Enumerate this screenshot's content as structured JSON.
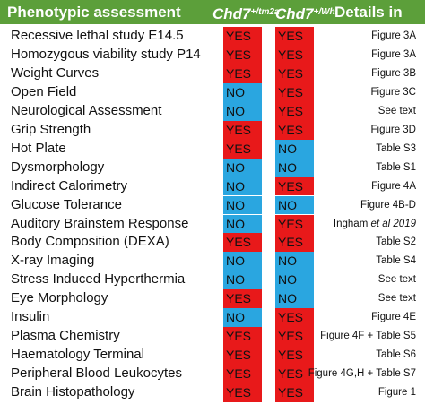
{
  "header": {
    "phenotypic_assessment": "Phenotypic assessment",
    "genotype1_base": "Chd7",
    "genotype1_sup": "+/tm2a",
    "genotype2_base": "Chd7",
    "genotype2_sup": "+/Whi",
    "details_in": "Details in"
  },
  "colors": {
    "header_green": "#5c9f3a",
    "yes_red": "#e8191a",
    "no_blue": "#2aa6e0"
  },
  "rows": [
    {
      "assay": "Recessive lethal study E14.5",
      "g1": "YES",
      "g2": "YES",
      "detail": "Figure 3A",
      "detail_italic": ""
    },
    {
      "assay": "Homozygous viability study P14",
      "g1": "YES",
      "g2": "YES",
      "detail": "Figure 3A",
      "detail_italic": ""
    },
    {
      "assay": "Weight Curves",
      "g1": "YES",
      "g2": "YES",
      "detail": "Figure  3B",
      "detail_italic": ""
    },
    {
      "assay": "Open Field",
      "g1": "NO",
      "g2": "YES",
      "detail": "Figure  3C",
      "detail_italic": ""
    },
    {
      "assay": "Neurological Assessment",
      "g1": "NO",
      "g2": "YES",
      "detail": "See text",
      "detail_italic": ""
    },
    {
      "assay": "Grip Strength",
      "g1": "YES",
      "g2": "YES",
      "detail": "Figure 3D",
      "detail_italic": ""
    },
    {
      "assay": "Hot Plate",
      "g1": "YES",
      "g2": "NO",
      "detail": "Table S3",
      "detail_italic": ""
    },
    {
      "assay": "Dysmorphology",
      "g1": "NO",
      "g2": "NO",
      "detail": "Table S1",
      "detail_italic": ""
    },
    {
      "assay": "Indirect Calorimetry",
      "g1": "NO",
      "g2": "YES",
      "detail": "Figure  4A",
      "detail_italic": ""
    },
    {
      "assay": "Glucose Tolerance",
      "g1": "NO",
      "g2": "NO",
      "detail": "Figure 4B-D",
      "detail_italic": ""
    },
    {
      "assay": "Auditory Brainstem Response",
      "g1": "NO",
      "g2": "YES",
      "detail": "Ingham ",
      "detail_italic": "et al 2019"
    },
    {
      "assay": "Body Composition (DEXA)",
      "g1": "YES",
      "g2": "YES",
      "detail": "Table S2",
      "detail_italic": ""
    },
    {
      "assay": "X-ray Imaging",
      "g1": "NO",
      "g2": "NO",
      "detail": "Table S4",
      "detail_italic": ""
    },
    {
      "assay": "Stress Induced Hyperthermia",
      "g1": "NO",
      "g2": "NO",
      "detail": "See text",
      "detail_italic": ""
    },
    {
      "assay": "Eye Morphology",
      "g1": "YES",
      "g2": "NO",
      "detail": "See text",
      "detail_italic": ""
    },
    {
      "assay": "Insulin",
      "g1": "NO",
      "g2": "YES",
      "detail": "Figure  4E",
      "detail_italic": ""
    },
    {
      "assay": "Plasma Chemistry",
      "g1": "YES",
      "g2": "YES",
      "detail": "Figure  4F + Table S5",
      "detail_italic": ""
    },
    {
      "assay": "Haematology Terminal",
      "g1": "YES",
      "g2": "YES",
      "detail": "Table S6",
      "detail_italic": ""
    },
    {
      "assay": "Peripheral Blood Leukocytes",
      "g1": "YES",
      "g2": "YES",
      "detail": "Figure  4G,H + Table S7",
      "detail_italic": ""
    },
    {
      "assay": "Brain Histopathology",
      "g1": "YES",
      "g2": "YES",
      "detail": "Figure 1",
      "detail_italic": ""
    }
  ]
}
